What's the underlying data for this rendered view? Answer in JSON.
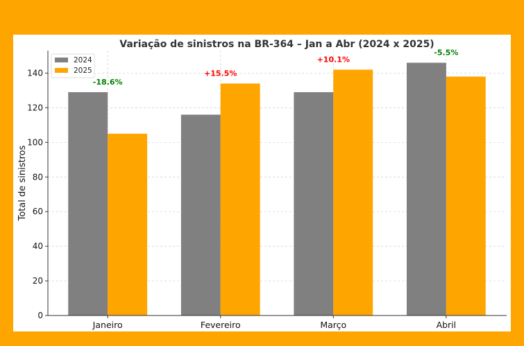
{
  "chart_data": {
    "type": "bar",
    "title": "Variação de sinistros na BR-364 – Jan a Abr (2024 x 2025)",
    "xlabel": "",
    "ylabel": "Total de sinistros",
    "categories": [
      "Janeiro",
      "Fevereiro",
      "Março",
      "Abril"
    ],
    "series": [
      {
        "name": "2024",
        "values": [
          129,
          116,
          129,
          146
        ],
        "color": "#808080"
      },
      {
        "name": "2025",
        "values": [
          105,
          134,
          142,
          138
        ],
        "color": "#FFA500"
      }
    ],
    "annotations": [
      {
        "text": "-18.6%",
        "color": "#008000"
      },
      {
        "text": "+15.5%",
        "color": "#FF0000"
      },
      {
        "text": "+10.1%",
        "color": "#FF0000"
      },
      {
        "text": "-5.5%",
        "color": "#008000"
      }
    ],
    "ylim": [
      0,
      153
    ],
    "yticks": [
      0,
      20,
      40,
      60,
      80,
      100,
      120,
      140
    ],
    "grid": true,
    "legend": "top-left",
    "background_color": "#FFA500"
  }
}
